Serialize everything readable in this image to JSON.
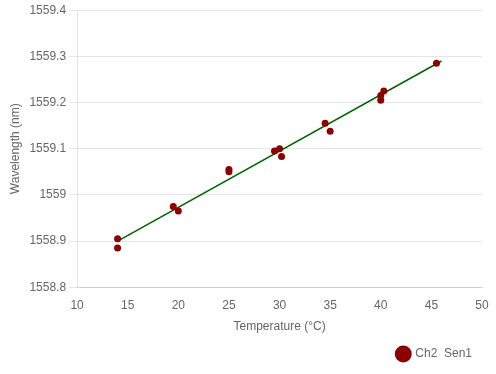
{
  "chart_data": {
    "type": "scatter",
    "x_label": "Temperature (°C)",
    "y_label": "Wavelength (nm)",
    "xlim": [
      10,
      50
    ],
    "ylim": [
      1558.8,
      1559.4
    ],
    "xticks": [
      10,
      15,
      20,
      25,
      30,
      35,
      40,
      45,
      50
    ],
    "yticks": [
      1558.8,
      1558.9,
      1559.0,
      1559.1,
      1559.2,
      1559.3,
      1559.4
    ],
    "grid": "y",
    "legend": "lower right",
    "series": [
      {
        "type": "line",
        "color": "#006400",
        "x": [
          14,
          46
        ],
        "values": [
          1558.9,
          1559.29
        ]
      },
      {
        "name": "Ch2  Sen1",
        "type": "scatter",
        "color": "#8B0000",
        "marker": "circle",
        "x": [
          14,
          14,
          19.5,
          20,
          25,
          25,
          29.5,
          30,
          30.2,
          34.5,
          35,
          40,
          40,
          40.3,
          45.5
        ],
        "values": [
          1558.905,
          1558.885,
          1558.975,
          1558.965,
          1559.055,
          1559.05,
          1559.095,
          1559.1,
          1559.083,
          1559.155,
          1559.138,
          1559.215,
          1559.205,
          1559.225,
          1559.285
        ]
      }
    ]
  }
}
